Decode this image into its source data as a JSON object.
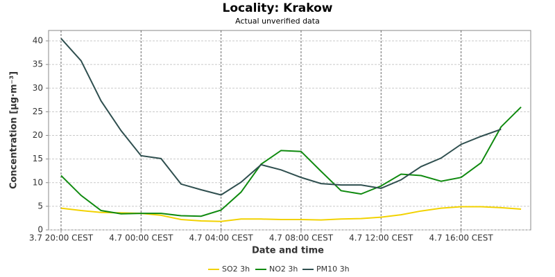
{
  "chart_data": {
    "type": "line",
    "title": "Locality: Krakow",
    "subtitle": "Actual unverified data",
    "x_label": "Date and time",
    "y_label": "Concentration [µg·m⁻³]",
    "x": [
      "3.7 20:00 CEST",
      "3.7 21:00 CEST",
      "3.7 22:00 CEST",
      "3.7 23:00 CEST",
      "4.7 00:00 CEST",
      "4.7 01:00 CEST",
      "4.7 02:00 CEST",
      "4.7 03:00 CEST",
      "4.7 04:00 CEST",
      "4.7 05:00 CEST",
      "4.7 06:00 CEST",
      "4.7 07:00 CEST",
      "4.7 08:00 CEST",
      "4.7 09:00 CEST",
      "4.7 10:00 CEST",
      "4.7 11:00 CEST",
      "4.7 12:00 CEST",
      "4.7 13:00 CEST",
      "4.7 14:00 CEST",
      "4.7 15:00 CEST",
      "4.7 16:00 CEST",
      "4.7 17:00 CEST",
      "4.7 18:00 CEST",
      "4.7 19:00 CEST"
    ],
    "xticks": [
      "3.7 20:00 CEST",
      "4.7 00:00 CEST",
      "4.7 04:00 CEST",
      "4.7 08:00 CEST",
      "4.7 12:00 CEST",
      "4.7 16:00 CEST"
    ],
    "series": [
      {
        "name": "SO2 3h",
        "color": "#f2d200",
        "values": [
          4.6,
          4.1,
          3.7,
          3.6,
          3.5,
          3.1,
          2.2,
          1.9,
          1.8,
          2.3,
          2.3,
          2.2,
          2.2,
          2.1,
          2.3,
          2.4,
          2.7,
          3.2,
          4.0,
          4.6,
          4.9,
          4.9,
          4.7,
          4.4
        ]
      },
      {
        "name": "NO2 3h",
        "color": "#0f8a0f",
        "values": [
          11.5,
          7.3,
          4.1,
          3.4,
          3.5,
          3.5,
          3.0,
          2.9,
          4.2,
          8.0,
          13.9,
          16.8,
          16.6,
          12.4,
          8.3,
          7.6,
          9.3,
          11.8,
          11.5,
          10.3,
          11.1,
          14.2,
          21.8,
          26.0
        ]
      },
      {
        "name": "PM10 3h",
        "color": "#2f4f4f",
        "values": [
          40.5,
          35.8,
          27.3,
          21.0,
          15.7,
          15.1,
          9.7,
          8.5,
          7.4,
          10.1,
          13.8,
          12.7,
          11.1,
          9.8,
          9.5,
          9.5,
          8.8,
          10.6,
          13.4,
          15.2,
          18.1,
          19.8,
          21.3,
          null
        ]
      }
    ],
    "ylim": [
      0,
      42.2
    ],
    "yticks": [
      0,
      5,
      10,
      15,
      20,
      25,
      30,
      35,
      40
    ],
    "grid": true,
    "legend": "bottom"
  }
}
